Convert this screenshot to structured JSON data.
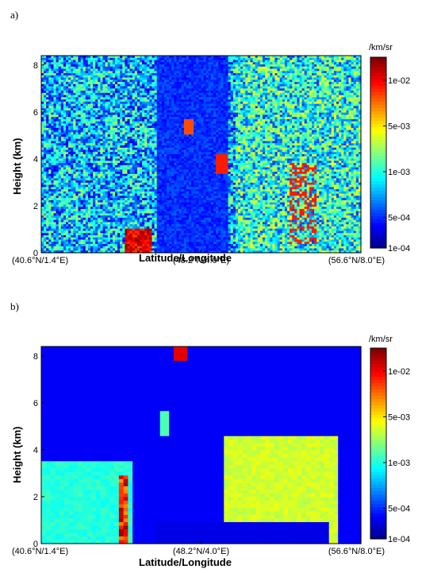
{
  "chart_data": [
    {
      "type": "heatmap",
      "panel_label": "a)",
      "xlabel": "Latitude/Longitude",
      "ylabel": "Height (km)",
      "x_tick_labels": [
        "(40.6°N/1.4°E)",
        "(48.2°N/4.0°E)",
        "(56.6°N/8.0°E)"
      ],
      "y_ticks": [
        "0",
        "2",
        "4",
        "6",
        "8"
      ],
      "ylim": [
        0,
        8.4
      ],
      "colorbar": {
        "unit": "/km/sr",
        "tick_labels": [
          "1e-02",
          "5e-03",
          "1e-03",
          "5e-04",
          "1e-04"
        ],
        "scale": "log",
        "range": [
          "1e-04",
          "2e-02"
        ]
      },
      "style": "noisy"
    },
    {
      "type": "heatmap",
      "panel_label": "b)",
      "xlabel": "Latitude/Longitude",
      "ylabel": "Height (km)",
      "x_tick_labels": [
        "(40.6°N/1.4°E)",
        "(48.2°N/4.0°E)",
        "(56.6°N/8.0°E)"
      ],
      "y_ticks": [
        "0",
        "2",
        "4",
        "6",
        "8"
      ],
      "ylim": [
        0,
        8.4
      ],
      "colorbar": {
        "unit": "/km/sr",
        "tick_labels": [
          "1e-02",
          "5e-03",
          "1e-03",
          "5e-04",
          "1e-04"
        ],
        "scale": "log",
        "range": [
          "1e-04",
          "2e-02"
        ]
      },
      "style": "smooth"
    }
  ]
}
